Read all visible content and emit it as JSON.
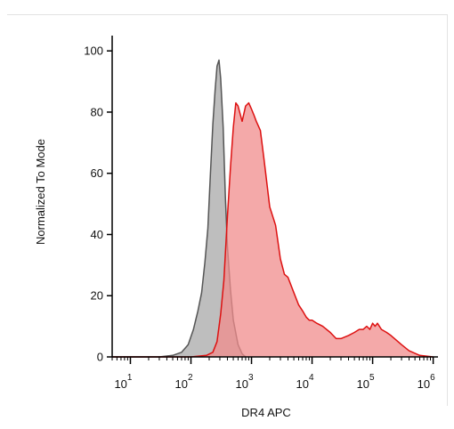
{
  "chart_data": {
    "type": "area",
    "title": "",
    "xlabel": "DR4 APC",
    "ylabel": "Normalized To Mode",
    "x_scale": "log",
    "xlim": [
      5,
      1200000
    ],
    "ylim": [
      0,
      105
    ],
    "y_ticks": [
      0,
      20,
      40,
      60,
      80,
      100
    ],
    "x_tick_labels": [
      {
        "value": 10,
        "base": "10",
        "exp": "1"
      },
      {
        "value": 100,
        "base": "10",
        "exp": "2"
      },
      {
        "value": 1000,
        "base": "10",
        "exp": "3"
      },
      {
        "value": 10000,
        "base": "10",
        "exp": "4"
      },
      {
        "value": 100000,
        "base": "10",
        "exp": "5"
      },
      {
        "value": 1000000,
        "base": "10",
        "exp": "6"
      }
    ],
    "grid": false,
    "series": [
      {
        "fill": "#a8a8a8",
        "stroke": "#555555",
        "x": [
          5,
          30,
          50,
          70,
          90,
          110,
          130,
          150,
          170,
          190,
          210,
          230,
          250,
          270,
          290,
          310,
          340,
          370,
          400,
          450,
          500,
          600,
          700,
          800
        ],
        "y": [
          0,
          0,
          0.5,
          1.5,
          4,
          9,
          15,
          21,
          31,
          42,
          60,
          76,
          87,
          95,
          97,
          91,
          75,
          52,
          36,
          22,
          12,
          4,
          1,
          0
        ]
      },
      {
        "fill": "#f08c8c",
        "stroke": "#dd1111",
        "x": [
          5,
          100,
          180,
          230,
          270,
          310,
          350,
          400,
          450,
          500,
          550,
          600,
          700,
          800,
          900,
          1000,
          1100,
          1200,
          1400,
          1600,
          2000,
          2500,
          3000,
          3500,
          4000,
          5000,
          6000,
          7000,
          8000,
          9000,
          10000,
          12000,
          15000,
          20000,
          25000,
          30000,
          40000,
          50000,
          60000,
          70000,
          80000,
          90000,
          100000,
          110000,
          120000,
          140000,
          170000,
          200000,
          300000,
          400000,
          600000,
          1000000
        ],
        "y": [
          0,
          0,
          0.5,
          1.5,
          5,
          14,
          25,
          46,
          62,
          75,
          83,
          82,
          77,
          82,
          83,
          81,
          79,
          77,
          74,
          65,
          49,
          43,
          32,
          27,
          26,
          21,
          17,
          15,
          13,
          12,
          12,
          11,
          10,
          8,
          6,
          6,
          7,
          8,
          9,
          9,
          10,
          9,
          11,
          10,
          11,
          9,
          8,
          7,
          4,
          2,
          0.5,
          0
        ]
      }
    ]
  }
}
